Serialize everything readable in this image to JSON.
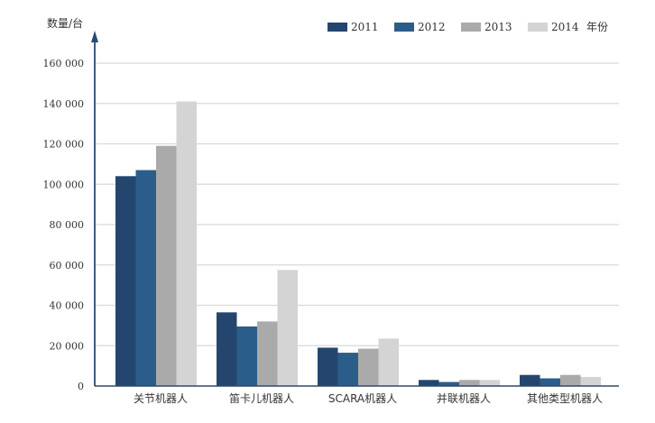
{
  "chart_data": {
    "type": "bar",
    "ylabel": "数量/台",
    "legend_title": "年份",
    "legend_position": "top-right",
    "categories": [
      "关节机器人",
      "笛卡儿机器人",
      "SCARA机器人",
      "并联机器人",
      "其他类型机器人"
    ],
    "series": [
      {
        "name": "2011",
        "color": "#24466e",
        "values": [
          104000,
          36500,
          19000,
          3000,
          5500
        ]
      },
      {
        "name": "2012",
        "color": "#2b5d8a",
        "values": [
          107000,
          29500,
          16500,
          2000,
          3800
        ]
      },
      {
        "name": "2013",
        "color": "#aaaaaa",
        "values": [
          119000,
          32000,
          18500,
          3000,
          5500
        ]
      },
      {
        "name": "2014",
        "color": "#d4d4d4",
        "values": [
          141000,
          57500,
          23500,
          3000,
          4500
        ]
      }
    ],
    "ylim": [
      0,
      160000
    ],
    "yticks": [
      0,
      20000,
      40000,
      60000,
      80000,
      100000,
      120000,
      140000,
      160000
    ],
    "ytick_labels": [
      "0",
      "20 000",
      "40 000",
      "60 000",
      "80 000",
      "100 000",
      "120 000",
      "140 000",
      "160 000"
    ],
    "grid": true,
    "colors": {
      "grid": "#d9d9d9",
      "axis": "#2b4a6f",
      "text": "#333333"
    }
  }
}
